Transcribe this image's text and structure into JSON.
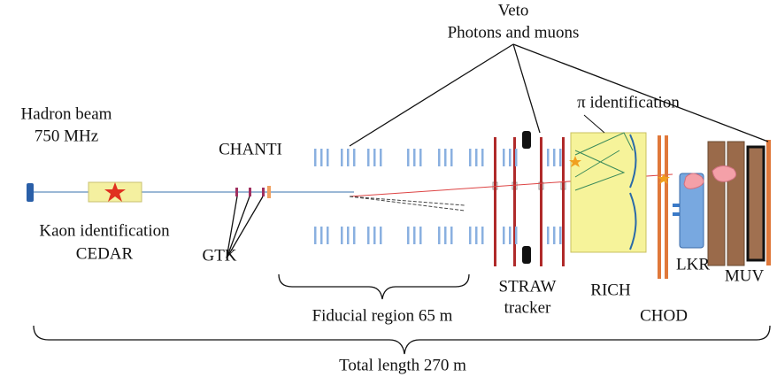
{
  "labels": {
    "veto": "Veto",
    "veto_sub": "Photons and muons",
    "pi_id": "π identification",
    "hadron_beam": "Hadron beam",
    "beam_rate": "750 MHz",
    "chanti": "CHANTI",
    "kaon_id": "Kaon identification",
    "cedar": "CEDAR",
    "gtk": "GTK",
    "fiducial": "Fiducial region 65 m",
    "straw": "STRAW",
    "tracker": "tracker",
    "rich": "RICH",
    "lkr": "LKR",
    "muv": "MUV",
    "chod": "CHOD",
    "total": "Total length 270 m"
  }
}
